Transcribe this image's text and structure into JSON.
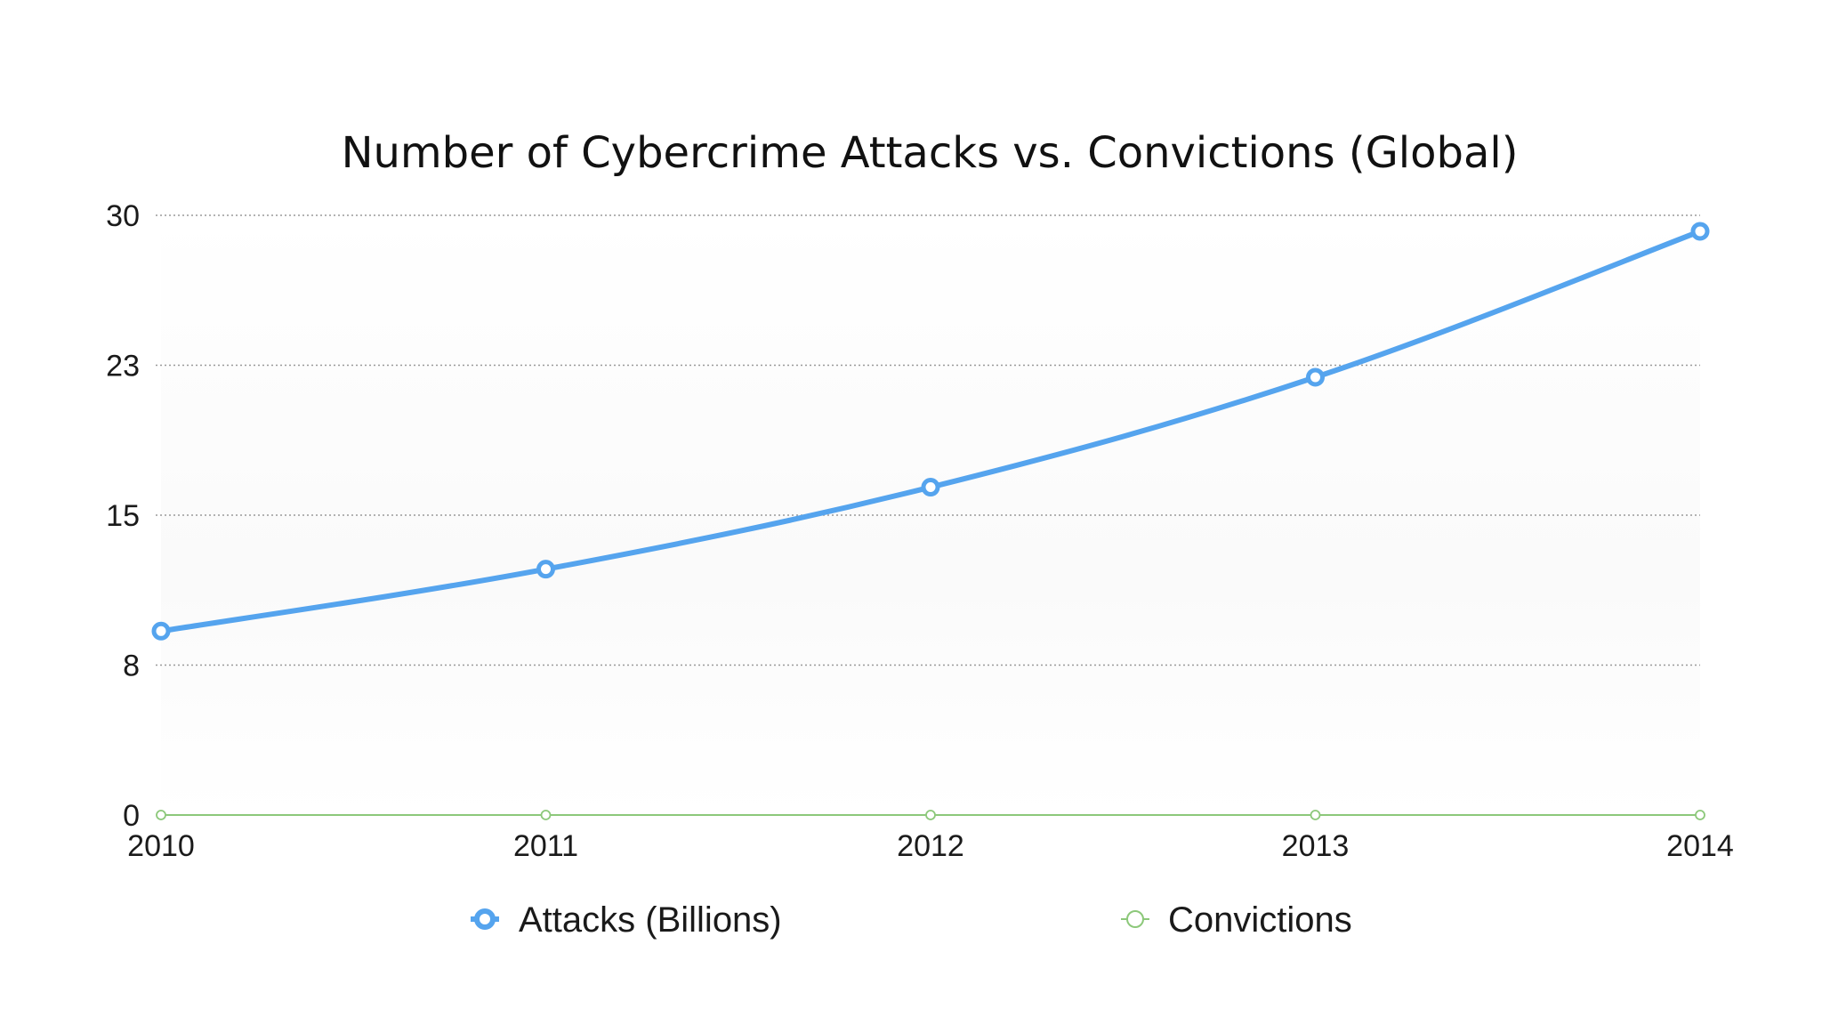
{
  "chart_data": {
    "type": "line",
    "title": "Number of Cybercrime Attacks vs. Convictions (Global)",
    "xlabel": "",
    "ylabel": "",
    "categories": [
      "2010",
      "2011",
      "2012",
      "2013",
      "2014"
    ],
    "y_ticks": [
      "0",
      "8",
      "15",
      "23",
      "30"
    ],
    "ylim": [
      0,
      30
    ],
    "grid": true,
    "legend_position": "bottom",
    "series": [
      {
        "name": "Attacks (Billions)",
        "values": [
          9.2,
          12.3,
          16.4,
          21.9,
          29.2
        ],
        "color": "#55a4ee"
      },
      {
        "name": "Convictions",
        "values": [
          0,
          0,
          0,
          0,
          0
        ],
        "color": "#8cc87a"
      }
    ]
  }
}
